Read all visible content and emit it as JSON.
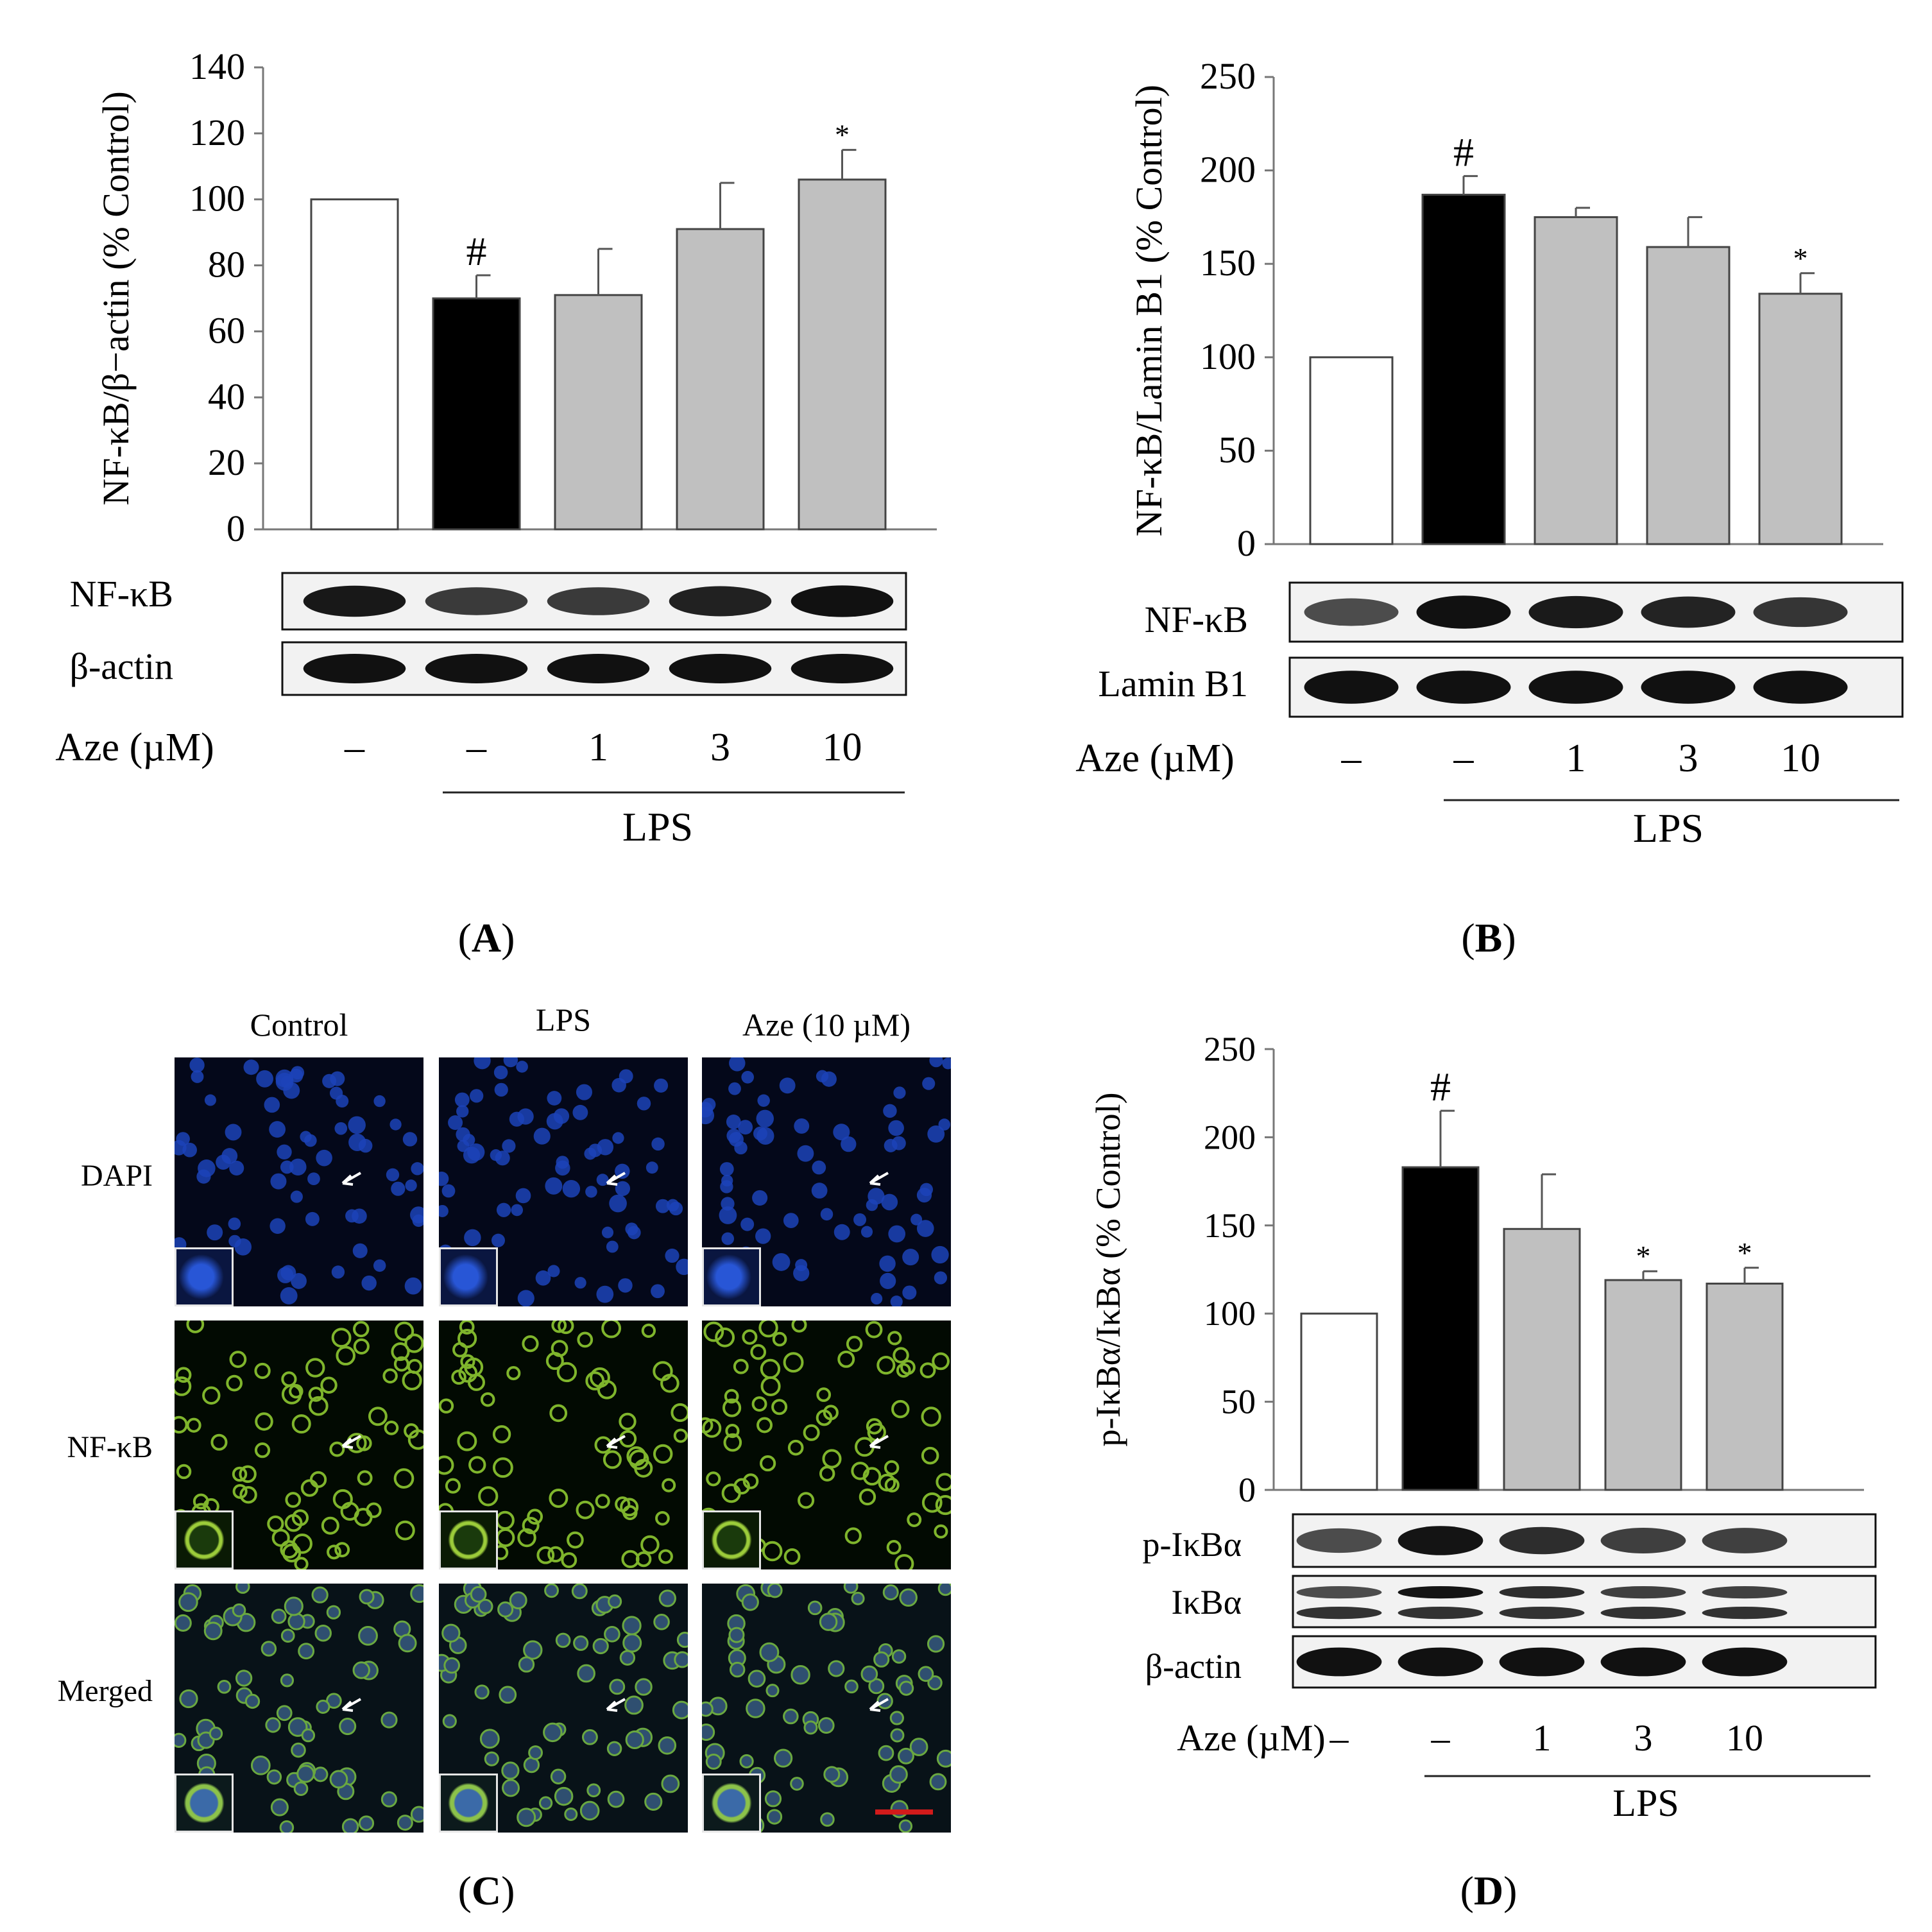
{
  "chart_data": [
    {
      "panel": "A",
      "type": "bar",
      "ylabel": "NF-κB/β−actin (% Control)",
      "ylim": [
        0,
        140
      ],
      "yticks": [
        0,
        20,
        40,
        60,
        80,
        100,
        120,
        140
      ],
      "values": [
        100,
        70,
        71,
        91,
        106
      ],
      "errors": [
        0,
        7,
        14,
        14,
        9
      ],
      "colors": [
        "#ffffff",
        "#000000",
        "#c0c0c0",
        "#c0c0c0",
        "#c0c0c0"
      ],
      "marks": [
        "",
        "#",
        "",
        "",
        "*"
      ],
      "blots": [
        "NF-κB",
        "β-actin"
      ],
      "condition_label": "Aze (µM)",
      "doses": [
        "–",
        "–",
        "1",
        "3",
        "10"
      ],
      "group_label": "LPS",
      "caption": "A"
    },
    {
      "panel": "B",
      "type": "bar",
      "ylabel": "NF-κB/Lamin B1 (% Control)",
      "ylim": [
        0,
        250
      ],
      "yticks": [
        0,
        50,
        100,
        150,
        200,
        250
      ],
      "values": [
        100,
        187,
        175,
        159,
        134
      ],
      "errors": [
        0,
        10,
        5,
        16,
        11
      ],
      "colors": [
        "#ffffff",
        "#000000",
        "#c0c0c0",
        "#c0c0c0",
        "#c0c0c0"
      ],
      "marks": [
        "",
        "#",
        "",
        "",
        "*"
      ],
      "blots": [
        "NF-κB",
        "Lamin B1"
      ],
      "condition_label": "Aze (µM)",
      "doses": [
        "–",
        "–",
        "1",
        "3",
        "10"
      ],
      "group_label": "LPS",
      "caption": "B"
    },
    {
      "panel": "D",
      "type": "bar",
      "ylabel": "p-IκBα/IκBα (% Control)",
      "ylim": [
        0,
        250
      ],
      "yticks": [
        0,
        50,
        100,
        150,
        200,
        250
      ],
      "values": [
        100,
        183,
        148,
        119,
        117
      ],
      "errors": [
        0,
        32,
        31,
        5,
        9
      ],
      "colors": [
        "#ffffff",
        "#000000",
        "#c0c0c0",
        "#c0c0c0",
        "#c0c0c0"
      ],
      "marks": [
        "",
        "#",
        "",
        "*",
        "*"
      ],
      "blots": [
        "p-IκBα",
        "IκBα",
        "β-actin"
      ],
      "condition_label": "Aze (µM)",
      "doses": [
        "–",
        "–",
        "1",
        "3",
        "10"
      ],
      "group_label": "LPS",
      "caption": "D"
    }
  ],
  "panel_c": {
    "columns": [
      "Control",
      "LPS",
      "Aze (10 µM)"
    ],
    "rows": [
      "DAPI",
      "NF-κB",
      "Merged"
    ],
    "caption": "C"
  }
}
